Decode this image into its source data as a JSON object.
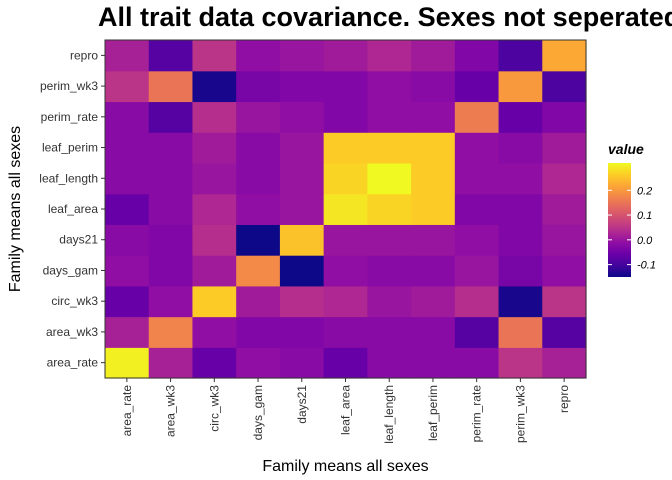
{
  "chart_data": {
    "type": "heatmap",
    "title": "All trait data covariance. Sexes not seperated",
    "xlabel": "Family means all sexes",
    "ylabel": "Family means all sexes",
    "categories": [
      "area_rate",
      "area_wk3",
      "circ_wk3",
      "days_gam",
      "days21",
      "leaf_area",
      "leaf_length",
      "leaf_perim",
      "perim_rate",
      "perim_wk3",
      "repro"
    ],
    "rows_bottom_to_top": [
      "area_rate",
      "area_wk3",
      "circ_wk3",
      "days_gam",
      "days21",
      "leaf_area",
      "leaf_length",
      "leaf_perim",
      "perim_rate",
      "perim_wk3",
      "repro"
    ],
    "values": [
      [
        0.3,
        0.02,
        -0.06,
        -0.01,
        -0.02,
        -0.06,
        -0.02,
        -0.02,
        -0.02,
        0.05,
        0.02
      ],
      [
        0.02,
        0.17,
        -0.01,
        -0.03,
        -0.03,
        -0.02,
        -0.02,
        -0.02,
        -0.08,
        0.15,
        -0.08
      ],
      [
        -0.06,
        -0.01,
        0.26,
        0.01,
        0.04,
        0.03,
        0.0,
        0.01,
        0.04,
        -0.14,
        0.05
      ],
      [
        -0.01,
        -0.03,
        0.01,
        0.18,
        -0.15,
        -0.01,
        -0.02,
        -0.02,
        0.0,
        -0.04,
        -0.01
      ],
      [
        -0.02,
        -0.03,
        0.04,
        -0.15,
        0.25,
        0.0,
        0.0,
        0.0,
        -0.01,
        -0.03,
        0.0
      ],
      [
        -0.06,
        -0.02,
        0.03,
        -0.01,
        0.0,
        0.29,
        0.27,
        0.26,
        -0.03,
        -0.03,
        0.01
      ],
      [
        -0.02,
        -0.02,
        0.0,
        -0.02,
        0.0,
        0.27,
        0.31,
        0.26,
        -0.01,
        -0.01,
        0.03
      ],
      [
        -0.02,
        -0.02,
        0.01,
        -0.02,
        0.0,
        0.26,
        0.26,
        0.26,
        -0.01,
        -0.02,
        0.01
      ],
      [
        -0.02,
        -0.08,
        0.04,
        0.0,
        -0.01,
        -0.03,
        -0.01,
        -0.01,
        0.16,
        -0.06,
        -0.03
      ],
      [
        0.05,
        0.15,
        -0.14,
        -0.04,
        -0.03,
        -0.03,
        -0.01,
        -0.02,
        -0.06,
        0.2,
        -0.09
      ],
      [
        0.02,
        -0.08,
        0.05,
        -0.01,
        0.0,
        0.01,
        0.03,
        0.01,
        -0.03,
        -0.09,
        0.22
      ]
    ],
    "color_scale": {
      "name": "plasma",
      "domain": [
        -0.15,
        0.31
      ],
      "stops": [
        "#0d0887",
        "#41049d",
        "#6a00a8",
        "#8f0da4",
        "#b12a90",
        "#cc4778",
        "#e16462",
        "#f2844b",
        "#fca636",
        "#fcce25",
        "#f0f921"
      ]
    },
    "legend": {
      "title": "value",
      "ticks": [
        0.2,
        0.1,
        0.0,
        -0.1
      ],
      "tick_labels": [
        "0.2",
        "0.1",
        "0.0",
        "-0.1"
      ],
      "position": "right"
    },
    "grid": false
  }
}
